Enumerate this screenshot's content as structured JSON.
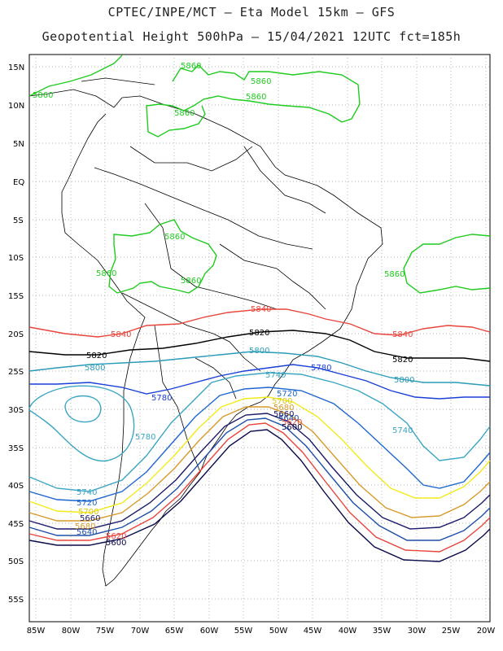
{
  "title": {
    "line1": "CPTEC/INPE/MCT –  Eta Model 15km – GFS",
    "line2": "Geopotential Height 500hPa – 15/04/2021 12UTC fct=185h"
  },
  "axes": {
    "lat_labels": [
      "15N",
      "10N",
      "5N",
      "EQ",
      "5S",
      "10S",
      "15S",
      "20S",
      "25S",
      "30S",
      "35S",
      "40S",
      "45S",
      "50S",
      "55S"
    ],
    "lon_labels": [
      "85W",
      "80W",
      "75W",
      "70W",
      "65W",
      "60W",
      "55W",
      "50W",
      "45W",
      "40W",
      "35W",
      "30W",
      "25W",
      "20W"
    ]
  },
  "contours": [
    {
      "value": 5860,
      "color": "#1fcc1f"
    },
    {
      "value": 5840,
      "color": "#e8453c"
    },
    {
      "value": 5820,
      "color": "#000000"
    },
    {
      "value": 5800,
      "color": "#2a9bb8"
    },
    {
      "value": 5780,
      "color": "#1a3fd6"
    },
    {
      "value": 5740,
      "color": "#3aa6c4"
    },
    {
      "value": 5720,
      "color": "#1f67d0"
    },
    {
      "value": 5700,
      "color": "#f2ea1a"
    },
    {
      "value": 5680,
      "color": "#d89a2a"
    },
    {
      "value": 5660,
      "color": "#1a1a6a"
    },
    {
      "value": 5640,
      "color": "#1f4fa8"
    },
    {
      "value": 5620,
      "color": "#e8453c"
    },
    {
      "value": 5600,
      "color": "#0a0a4a"
    }
  ],
  "labels": {
    "c5860": "5860",
    "c5840": "5840",
    "c5820": "5820",
    "c5800": "5800",
    "c5780": "5780",
    "c5740": "5740",
    "c5720": "5720",
    "c5700": "5700",
    "c5680": "5680",
    "c5660": "5660",
    "c5640": "5640",
    "c5620": "5620",
    "c5600": "5600"
  }
}
